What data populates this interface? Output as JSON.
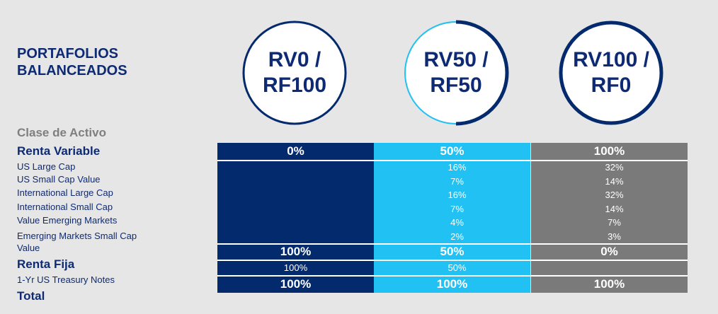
{
  "title": {
    "line1": "PORTAFOLIOS",
    "line2": "BALANCEADOS"
  },
  "portfolios": [
    {
      "line1": "RV0 /",
      "line2": "RF100"
    },
    {
      "line1": "RV50 /",
      "line2": "RF50"
    },
    {
      "line1": "RV100 /",
      "line2": "RF0"
    }
  ],
  "colors": {
    "navy": "#032a6d",
    "cyan": "#21c1f4",
    "gray": "#7a7a7b"
  },
  "rows": {
    "asset_class": "Clase de Activo",
    "equity": "Renta Variable",
    "us_large": "US Large Cap",
    "us_small_value": "US Small Cap Value",
    "intl_large": "International Large Cap",
    "intl_small": "International Small Cap",
    "value_em": "Value  Emerging Markets",
    "em_small_value_l1": "Emerging Markets Small Cap",
    "em_small_value_l2": "Value",
    "fixed": "Renta Fija",
    "treasury": "1-Yr US Treasury Notes",
    "total": "Total"
  },
  "values": {
    "col1": {
      "equity": "0%",
      "equity_subtotal": "100%",
      "treasury": "100%",
      "total": "100%"
    },
    "col2": {
      "equity": "50%",
      "us_large": "16%",
      "us_small_value": "7%",
      "intl_large": "16%",
      "intl_small": "7%",
      "value_em": "4%",
      "em_small_value": "2%",
      "equity_subtotal": "50%",
      "treasury": "50%",
      "total": "100%"
    },
    "col3": {
      "equity": "100%",
      "us_large": "32%",
      "us_small_value": "14%",
      "intl_large": "32%",
      "intl_small": "14%",
      "value_em": "7%",
      "em_small_value": "3%",
      "equity_subtotal": "0%",
      "total": "100%"
    }
  }
}
